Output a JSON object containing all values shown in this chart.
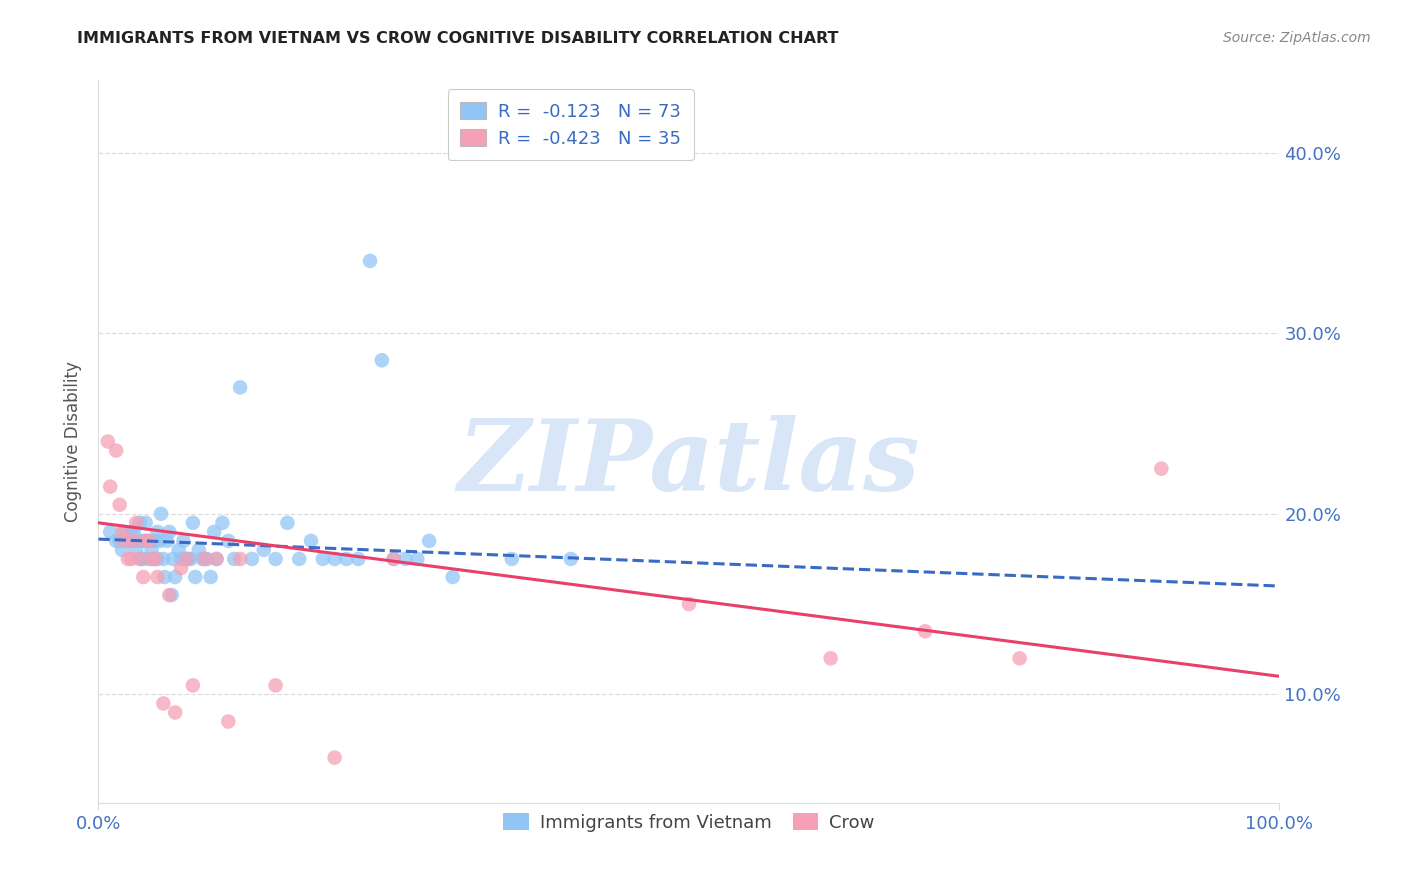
{
  "title": "IMMIGRANTS FROM VIETNAM VS CROW COGNITIVE DISABILITY CORRELATION CHART",
  "source": "Source: ZipAtlas.com",
  "ylabel": "Cognitive Disability",
  "ytick_labels": [
    "10.0%",
    "20.0%",
    "30.0%",
    "40.0%"
  ],
  "ytick_values": [
    0.1,
    0.2,
    0.3,
    0.4
  ],
  "xlim": [
    0.0,
    1.0
  ],
  "ylim": [
    0.04,
    0.44
  ],
  "legend_blue_r": "-0.123",
  "legend_blue_n": "73",
  "legend_pink_r": "-0.423",
  "legend_pink_n": "35",
  "legend_label_blue": "Immigrants from Vietnam",
  "legend_label_pink": "Crow",
  "blue_color": "#92C5F5",
  "pink_color": "#F5A0B5",
  "blue_line_color": "#3A6BC4",
  "pink_line_color": "#E8406A",
  "title_color": "#222222",
  "axis_label_color": "#4472C4",
  "ylabel_color": "#555555",
  "source_color": "#888888",
  "watermark_text": "ZIPatlas",
  "watermark_color": "#D8E6F8",
  "grid_color": "#DDDDDD",
  "blue_scatter_x": [
    0.01,
    0.015,
    0.018,
    0.02,
    0.022,
    0.025,
    0.027,
    0.028,
    0.03,
    0.03,
    0.032,
    0.033,
    0.035,
    0.036,
    0.037,
    0.038,
    0.04,
    0.04,
    0.042,
    0.043,
    0.045,
    0.046,
    0.047,
    0.048,
    0.05,
    0.05,
    0.052,
    0.053,
    0.055,
    0.056,
    0.058,
    0.06,
    0.062,
    0.063,
    0.065,
    0.068,
    0.07,
    0.072,
    0.074,
    0.076,
    0.078,
    0.08,
    0.082,
    0.085,
    0.088,
    0.09,
    0.092,
    0.095,
    0.098,
    0.1,
    0.105,
    0.11,
    0.115,
    0.12,
    0.13,
    0.14,
    0.15,
    0.16,
    0.17,
    0.18,
    0.19,
    0.2,
    0.21,
    0.22,
    0.23,
    0.24,
    0.25,
    0.26,
    0.27,
    0.28,
    0.3,
    0.35,
    0.4
  ],
  "blue_scatter_y": [
    0.19,
    0.185,
    0.185,
    0.18,
    0.19,
    0.185,
    0.185,
    0.19,
    0.185,
    0.19,
    0.18,
    0.185,
    0.195,
    0.175,
    0.185,
    0.175,
    0.185,
    0.195,
    0.185,
    0.175,
    0.18,
    0.185,
    0.175,
    0.185,
    0.19,
    0.175,
    0.185,
    0.2,
    0.175,
    0.165,
    0.185,
    0.19,
    0.155,
    0.175,
    0.165,
    0.18,
    0.175,
    0.185,
    0.175,
    0.175,
    0.175,
    0.195,
    0.165,
    0.18,
    0.175,
    0.175,
    0.175,
    0.165,
    0.19,
    0.175,
    0.195,
    0.185,
    0.175,
    0.27,
    0.175,
    0.18,
    0.175,
    0.195,
    0.175,
    0.185,
    0.175,
    0.175,
    0.175,
    0.175,
    0.34,
    0.285,
    0.175,
    0.175,
    0.175,
    0.185,
    0.165,
    0.175,
    0.175
  ],
  "pink_scatter_x": [
    0.008,
    0.01,
    0.015,
    0.018,
    0.02,
    0.022,
    0.025,
    0.028,
    0.03,
    0.032,
    0.035,
    0.038,
    0.04,
    0.043,
    0.045,
    0.048,
    0.05,
    0.055,
    0.06,
    0.065,
    0.07,
    0.075,
    0.08,
    0.09,
    0.1,
    0.11,
    0.12,
    0.15,
    0.2,
    0.25,
    0.5,
    0.62,
    0.7,
    0.78,
    0.9
  ],
  "pink_scatter_y": [
    0.24,
    0.215,
    0.235,
    0.205,
    0.19,
    0.185,
    0.175,
    0.175,
    0.185,
    0.195,
    0.175,
    0.165,
    0.185,
    0.185,
    0.175,
    0.175,
    0.165,
    0.095,
    0.155,
    0.09,
    0.17,
    0.175,
    0.105,
    0.175,
    0.175,
    0.085,
    0.175,
    0.105,
    0.065,
    0.175,
    0.15,
    0.12,
    0.135,
    0.12,
    0.225
  ],
  "blue_trend_y_start": 0.186,
  "blue_trend_y_end": 0.16,
  "pink_trend_y_start": 0.195,
  "pink_trend_y_end": 0.11
}
